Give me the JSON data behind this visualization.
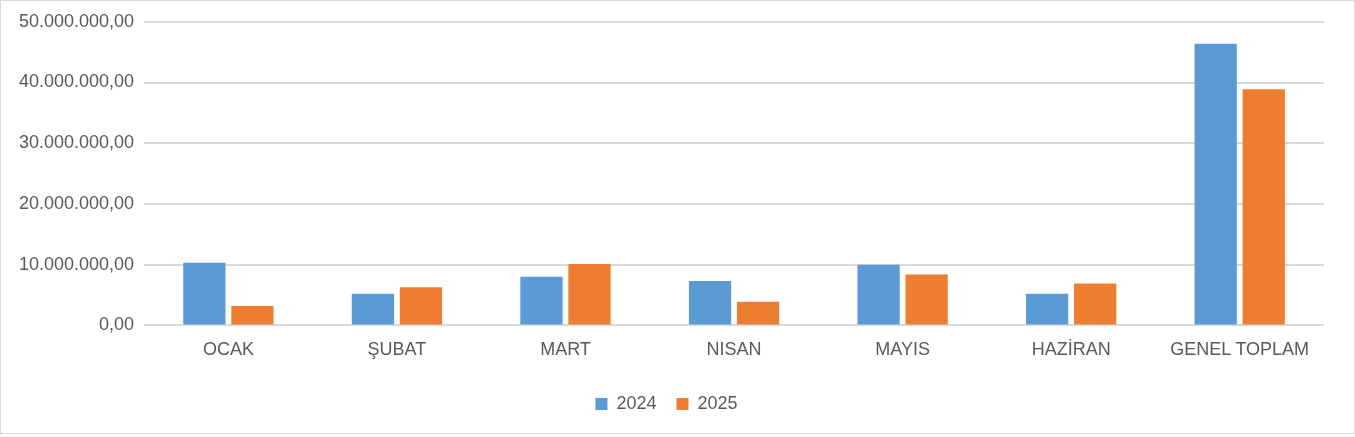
{
  "chart_data": {
    "type": "bar",
    "categories": [
      "OCAK",
      "ŞUBAT",
      "MART",
      "NISAN",
      "MAYIS",
      "HAZİRAN",
      "GENEL TOPLAM"
    ],
    "series": [
      {
        "name": "2024",
        "color": "#5b9bd5",
        "values": [
          10300000,
          5200000,
          8000000,
          7300000,
          10000000,
          5200000,
          46400000
        ]
      },
      {
        "name": "2025",
        "color": "#ed7d31",
        "values": [
          3200000,
          6300000,
          10100000,
          3900000,
          8400000,
          6900000,
          38900000
        ]
      }
    ],
    "ylim": [
      0,
      50000000
    ],
    "yticks": [
      {
        "value": 0,
        "label": "0,00"
      },
      {
        "value": 10000000,
        "label": "10.000.000,00"
      },
      {
        "value": 20000000,
        "label": "20.000.000,00"
      },
      {
        "value": 30000000,
        "label": "30.000.000,00"
      },
      {
        "value": 40000000,
        "label": "40.000.000,00"
      },
      {
        "value": 50000000,
        "label": "50.000.000,00"
      }
    ],
    "grid": "y",
    "legend": "bottom"
  }
}
